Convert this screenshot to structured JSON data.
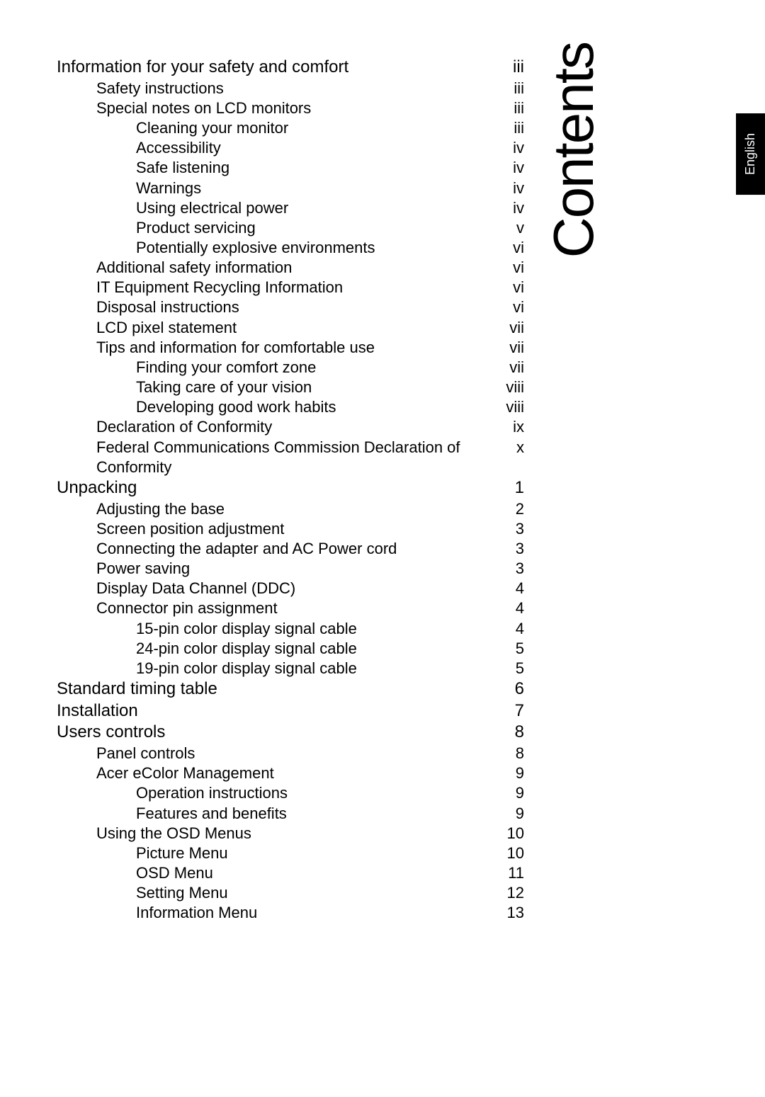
{
  "sideLabel": "Contents",
  "langTab": "English",
  "toc": [
    {
      "level": 1,
      "title": "Information for your safety and comfort",
      "page": "iii"
    },
    {
      "level": 2,
      "title": "Safety instructions",
      "page": "iii"
    },
    {
      "level": 2,
      "title": "Special notes on LCD monitors",
      "page": "iii"
    },
    {
      "level": 3,
      "title": "Cleaning your monitor",
      "page": "iii"
    },
    {
      "level": 3,
      "title": "Accessibility",
      "page": "iv"
    },
    {
      "level": 3,
      "title": "Safe listening",
      "page": "iv"
    },
    {
      "level": 3,
      "title": "Warnings",
      "page": "iv"
    },
    {
      "level": 3,
      "title": "Using electrical power",
      "page": "iv"
    },
    {
      "level": 3,
      "title": "Product servicing",
      "page": "v"
    },
    {
      "level": 3,
      "title": "Potentially explosive environments",
      "page": "vi"
    },
    {
      "level": 2,
      "title": "Additional safety information",
      "page": "vi"
    },
    {
      "level": 2,
      "title": "IT Equipment Recycling Information",
      "page": "vi"
    },
    {
      "level": 2,
      "title": "Disposal instructions",
      "page": "vi"
    },
    {
      "level": 2,
      "title": "LCD pixel statement",
      "page": "vii"
    },
    {
      "level": 2,
      "title": "Tips and information for comfortable use",
      "page": "vii"
    },
    {
      "level": 3,
      "title": "Finding your comfort zone",
      "page": "vii"
    },
    {
      "level": 3,
      "title": "Taking care of your vision",
      "page": "viii"
    },
    {
      "level": 3,
      "title": "Developing good work habits",
      "page": "viii"
    },
    {
      "level": 2,
      "title": "Declaration of Conformity",
      "page": "ix"
    },
    {
      "level": 2,
      "title": "Federal Communications Commission Declaration of Conformity",
      "page": "x"
    },
    {
      "level": 1,
      "title": "Unpacking",
      "page": "1"
    },
    {
      "level": 2,
      "title": "Adjusting the base",
      "page": "2"
    },
    {
      "level": 2,
      "title": "Screen position adjustment",
      "page": "3"
    },
    {
      "level": 2,
      "title": "Connecting the adapter and AC Power cord",
      "page": "3"
    },
    {
      "level": 2,
      "title": "Power saving",
      "page": "3"
    },
    {
      "level": 2,
      "title": "Display Data Channel (DDC)",
      "page": "4"
    },
    {
      "level": 2,
      "title": "Connector pin assignment",
      "page": "4"
    },
    {
      "level": 3,
      "title": "15-pin color display signal cable",
      "page": "4"
    },
    {
      "level": 3,
      "title": "24-pin color display signal cable",
      "page": "5"
    },
    {
      "level": 3,
      "title": "19-pin color display signal cable",
      "page": "5"
    },
    {
      "level": 1,
      "title": "Standard timing table",
      "page": "6"
    },
    {
      "level": 1,
      "title": "Installation",
      "page": "7"
    },
    {
      "level": 1,
      "title": "Users controls",
      "page": "8"
    },
    {
      "level": 2,
      "title": "Panel controls",
      "page": "8"
    },
    {
      "level": 2,
      "title": "Acer eColor Management",
      "page": "9"
    },
    {
      "level": 3,
      "title": "Operation instructions",
      "page": "9"
    },
    {
      "level": 3,
      "title": "Features and benefits",
      "page": "9"
    },
    {
      "level": 2,
      "title": "Using the OSD Menus",
      "page": "10"
    },
    {
      "level": 3,
      "title": "Picture Menu",
      "page": "10"
    },
    {
      "level": 3,
      "title": "OSD Menu",
      "page": "11"
    },
    {
      "level": 3,
      "title": "Setting Menu",
      "page": "12"
    },
    {
      "level": 3,
      "title": "Information Menu",
      "page": "13"
    }
  ],
  "style": {
    "bg": "#ffffff",
    "text": "#000000",
    "tabBg": "#000000",
    "tabText": "#ffffff",
    "lvl1_fontsize": 24,
    "lvl2_fontsize": 22,
    "lvl3_fontsize": 22,
    "side_fontsize": 80
  }
}
